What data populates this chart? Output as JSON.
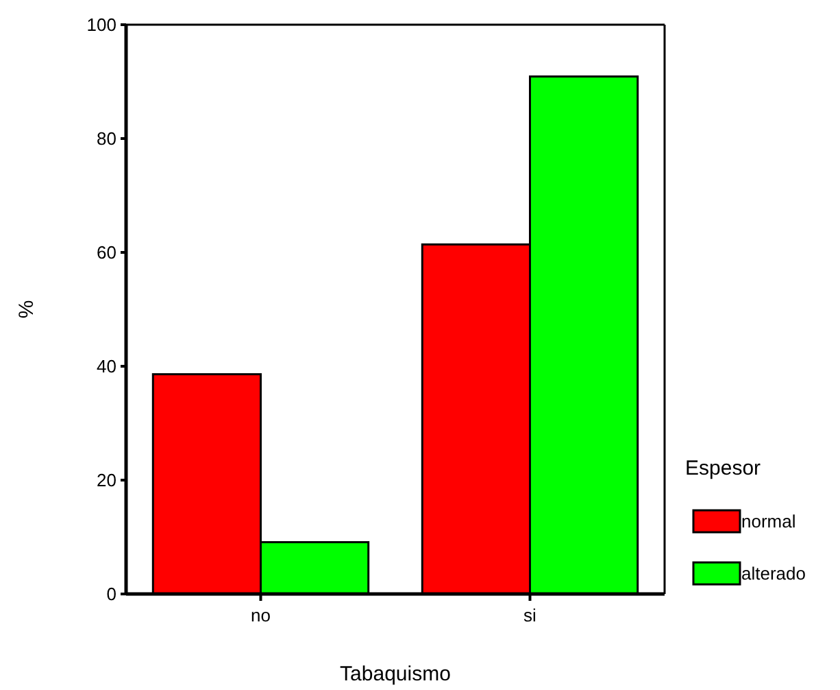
{
  "chart_data": {
    "type": "bar",
    "xlabel": "Tabaquismo",
    "ylabel": "%",
    "legend_title": "Espesor",
    "categories": [
      "no",
      "si"
    ],
    "series": [
      {
        "name": "normal",
        "color": "#ff0000",
        "values": [
          38.6,
          61.4
        ]
      },
      {
        "name": "alterado",
        "color": "#00ff00",
        "values": [
          9.1,
          90.9
        ]
      }
    ],
    "ylim": [
      0,
      100
    ],
    "yticks": [
      0,
      20,
      40,
      60,
      80,
      100
    ],
    "grid": false,
    "legend": "right"
  }
}
